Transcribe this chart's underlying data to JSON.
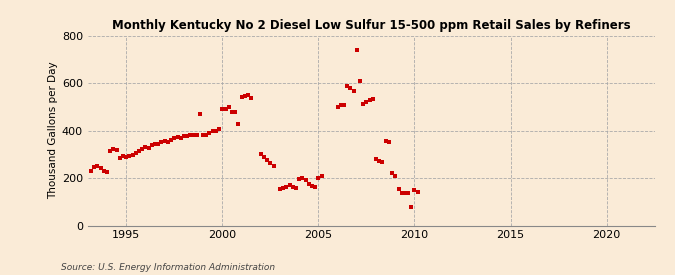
{
  "title": "Monthly Kentucky No 2 Diesel Low Sulfur 15-500 ppm Retail Sales by Refiners",
  "ylabel": "Thousand Gallons per Day",
  "source": "Source: U.S. Energy Information Administration",
  "background_color": "#faebd7",
  "marker_color": "#cc0000",
  "markersize": 10,
  "xlim": [
    1993.0,
    2022.5
  ],
  "ylim": [
    0,
    800
  ],
  "yticks": [
    0,
    200,
    400,
    600,
    800
  ],
  "xticks": [
    1995,
    2000,
    2005,
    2010,
    2015,
    2020
  ],
  "data": [
    [
      1993.17,
      230
    ],
    [
      1993.33,
      248
    ],
    [
      1993.5,
      252
    ],
    [
      1993.67,
      242
    ],
    [
      1993.83,
      230
    ],
    [
      1994.0,
      224
    ],
    [
      1994.17,
      316
    ],
    [
      1994.33,
      324
    ],
    [
      1994.5,
      318
    ],
    [
      1994.67,
      285
    ],
    [
      1994.83,
      292
    ],
    [
      1995.0,
      290
    ],
    [
      1995.17,
      292
    ],
    [
      1995.33,
      298
    ],
    [
      1995.5,
      305
    ],
    [
      1995.67,
      312
    ],
    [
      1995.83,
      322
    ],
    [
      1996.0,
      330
    ],
    [
      1996.17,
      328
    ],
    [
      1996.33,
      338
    ],
    [
      1996.5,
      343
    ],
    [
      1996.67,
      343
    ],
    [
      1996.83,
      352
    ],
    [
      1997.0,
      358
    ],
    [
      1997.17,
      353
    ],
    [
      1997.33,
      362
    ],
    [
      1997.5,
      368
    ],
    [
      1997.67,
      373
    ],
    [
      1997.83,
      368
    ],
    [
      1998.0,
      378
    ],
    [
      1998.17,
      376
    ],
    [
      1998.33,
      383
    ],
    [
      1998.5,
      382
    ],
    [
      1998.67,
      383
    ],
    [
      1998.83,
      472
    ],
    [
      1999.0,
      383
    ],
    [
      1999.17,
      382
    ],
    [
      1999.33,
      390
    ],
    [
      1999.5,
      397
    ],
    [
      1999.67,
      400
    ],
    [
      1999.83,
      408
    ],
    [
      2000.0,
      490
    ],
    [
      2000.17,
      492
    ],
    [
      2000.33,
      498
    ],
    [
      2000.5,
      478
    ],
    [
      2000.67,
      478
    ],
    [
      2000.83,
      428
    ],
    [
      2001.0,
      542
    ],
    [
      2001.17,
      548
    ],
    [
      2001.33,
      552
    ],
    [
      2001.5,
      538
    ],
    [
      2002.0,
      300
    ],
    [
      2002.17,
      288
    ],
    [
      2002.33,
      278
    ],
    [
      2002.5,
      262
    ],
    [
      2002.67,
      252
    ],
    [
      2003.0,
      155
    ],
    [
      2003.17,
      157
    ],
    [
      2003.33,
      163
    ],
    [
      2003.5,
      172
    ],
    [
      2003.67,
      162
    ],
    [
      2003.83,
      158
    ],
    [
      2004.0,
      198
    ],
    [
      2004.17,
      200
    ],
    [
      2004.33,
      192
    ],
    [
      2004.5,
      175
    ],
    [
      2004.67,
      168
    ],
    [
      2004.83,
      163
    ],
    [
      2005.0,
      202
    ],
    [
      2005.17,
      208
    ],
    [
      2006.0,
      500
    ],
    [
      2006.17,
      508
    ],
    [
      2006.33,
      510
    ],
    [
      2006.5,
      588
    ],
    [
      2006.67,
      578
    ],
    [
      2006.83,
      568
    ],
    [
      2007.0,
      740
    ],
    [
      2007.17,
      608
    ],
    [
      2007.33,
      512
    ],
    [
      2007.5,
      522
    ],
    [
      2007.67,
      528
    ],
    [
      2007.83,
      532
    ],
    [
      2008.0,
      282
    ],
    [
      2008.17,
      272
    ],
    [
      2008.33,
      268
    ],
    [
      2008.5,
      355
    ],
    [
      2008.67,
      352
    ],
    [
      2008.83,
      220
    ],
    [
      2009.0,
      208
    ],
    [
      2009.17,
      153
    ],
    [
      2009.33,
      138
    ],
    [
      2009.5,
      138
    ],
    [
      2009.67,
      138
    ],
    [
      2009.83,
      78
    ],
    [
      2010.0,
      148
    ],
    [
      2010.17,
      143
    ]
  ]
}
